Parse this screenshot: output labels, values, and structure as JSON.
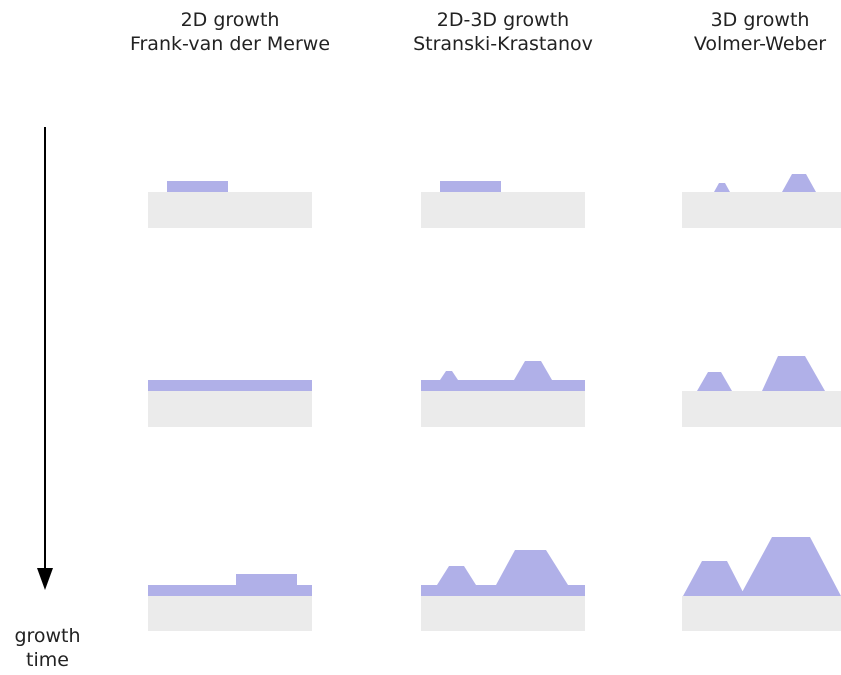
{
  "columns": [
    {
      "line1": "2D growth",
      "line2": "Frank-van der Merwe",
      "mode": "2D"
    },
    {
      "line1": "2D-3D growth",
      "line2": "Stranski-Krastanov",
      "mode": "2D-3D"
    },
    {
      "line1": "3D growth",
      "line2": "Volmer-Weber",
      "mode": "3D"
    }
  ],
  "time_axis": {
    "line1": "growth",
    "line2": "time"
  },
  "colors": {
    "substrate": "#ebebeb",
    "deposit": "#b0b0e8",
    "arrow": "#000000",
    "text": "#222222"
  }
}
